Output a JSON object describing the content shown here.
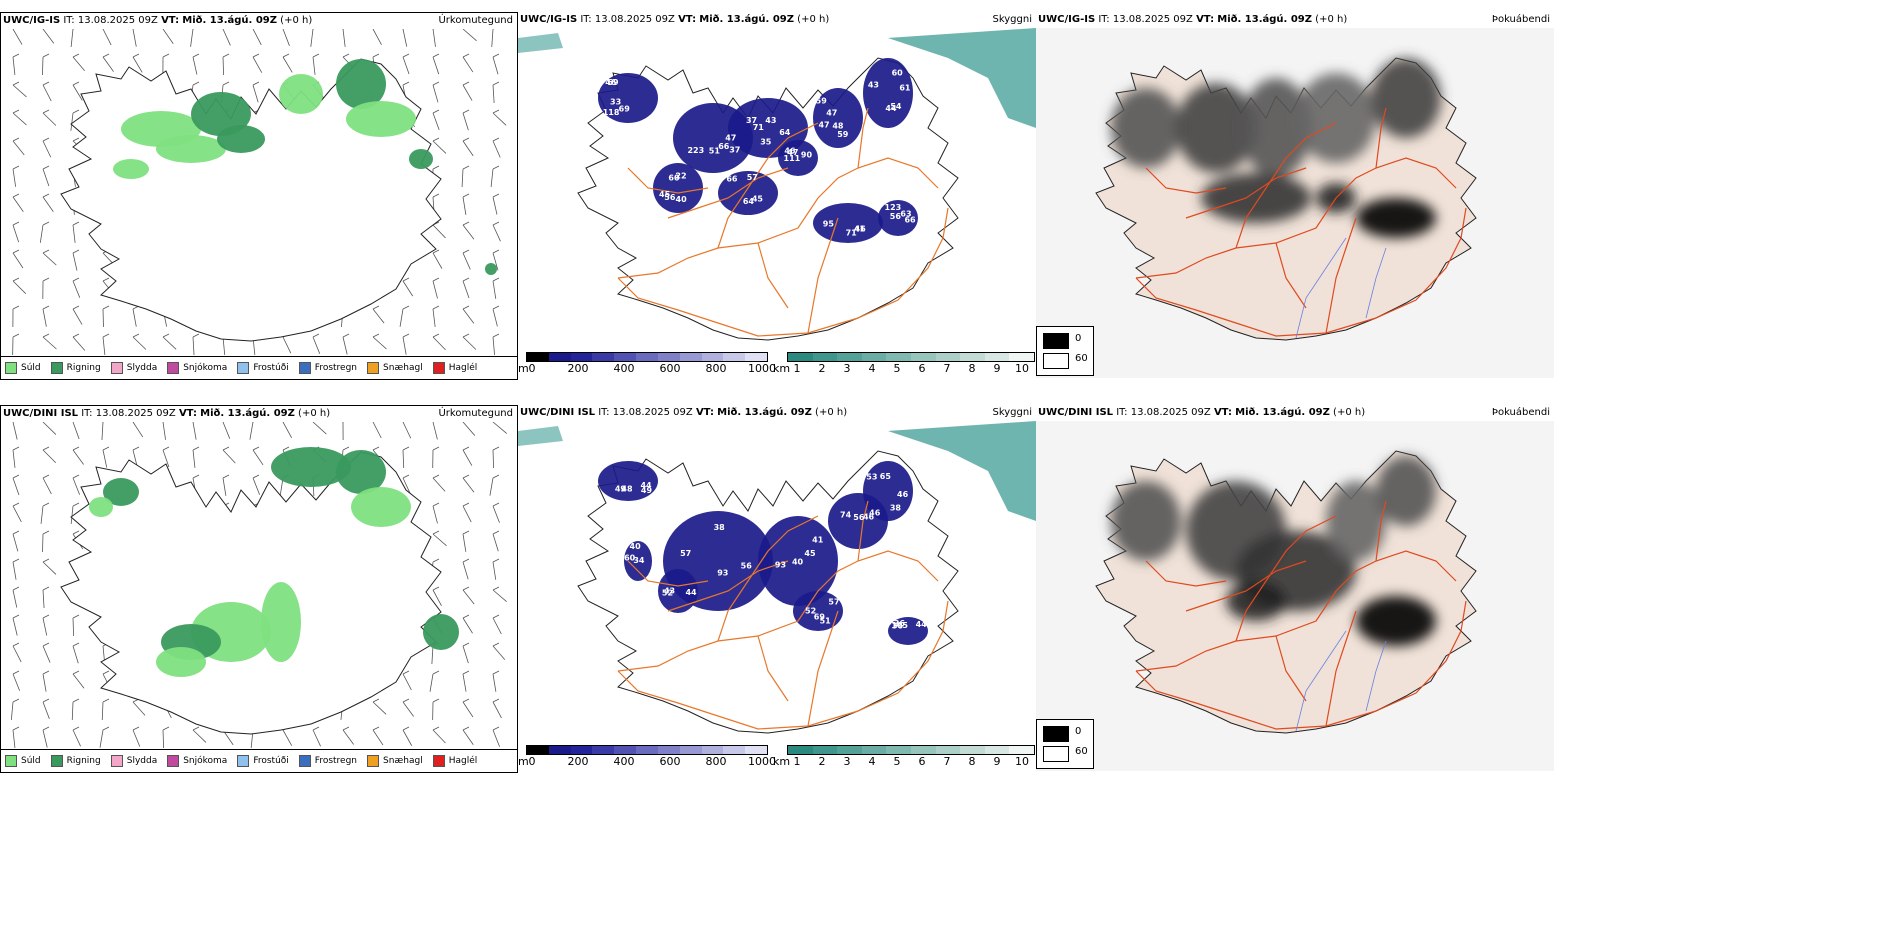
{
  "rows": [
    {
      "model": "UWC/IG-IS",
      "it_label": "IT:",
      "it_value": "13.08.2025 09Z",
      "vt_label": "VT:",
      "vt_value": "Mið. 13.ágú. 09Z",
      "lead": "(+0 h)",
      "panels": {
        "precip_title": "Úrkomutegund",
        "visibility_title": "Skyggni",
        "fog_title": "Þokuábendi"
      },
      "visibility_labels": [
        "69",
        "51",
        "43",
        "59",
        "61",
        "45",
        "64",
        "95",
        "63",
        "46",
        "33",
        "37",
        "35",
        "59",
        "60",
        "40",
        "45",
        "41",
        "66",
        "90",
        "69",
        "47",
        "37",
        "47",
        "44",
        "56",
        "57",
        "71",
        "123",
        "47",
        "46",
        "66",
        "64",
        "48",
        "54",
        "60",
        "66",
        "46",
        "56",
        "111",
        "118",
        "223",
        "71",
        "47",
        "43",
        "22"
      ]
    },
    {
      "model": "UWC/DINI ISL",
      "it_label": "IT:",
      "it_value": "13.08.2025 09Z",
      "vt_label": "VT:",
      "vt_value": "Mið. 13.ágú. 09Z",
      "lead": "(+0 h)",
      "panels": {
        "precip_title": "Úrkomutegund",
        "visibility_title": "Skyggni",
        "fog_title": "Þokuábendi"
      },
      "visibility_labels": [
        "44",
        "56",
        "41",
        "46",
        "65",
        "51",
        "44",
        "43",
        "34",
        "48",
        "38",
        "45",
        "46",
        "38",
        "69",
        "36",
        "52",
        "40",
        "49",
        "57",
        "40",
        "56",
        "46",
        "52",
        "105",
        "44",
        "60",
        "49",
        "93",
        "93",
        "74",
        "53",
        "57",
        "36"
      ]
    }
  ],
  "precip_legend": [
    {
      "label": "Súld",
      "color": "#7fe07f"
    },
    {
      "label": "Rigning",
      "color": "#3a9a5e"
    },
    {
      "label": "Slydda",
      "color": "#f4a6c8"
    },
    {
      "label": "Snjókoma",
      "color": "#c04aa0"
    },
    {
      "label": "Frostúði",
      "color": "#8fc0ee"
    },
    {
      "label": "Frostregn",
      "color": "#3a6fc0"
    },
    {
      "label": "Snæhagl",
      "color": "#f0a020"
    },
    {
      "label": "Haglél",
      "color": "#e02020"
    }
  ],
  "ceiling_bar": {
    "unit": "m",
    "ticks": [
      "0",
      "200",
      "400",
      "600",
      "800",
      "1000"
    ],
    "colors": [
      "#000",
      "#1a1a8a",
      "#23239a",
      "#3a3aa6",
      "#5252b2",
      "#6a6abe",
      "#8080c8",
      "#9898d4",
      "#b0b0de",
      "#c8c8e8",
      "#e0e0f4"
    ]
  },
  "visibility_bar": {
    "unit": "km",
    "ticks": [
      "1",
      "2",
      "3",
      "4",
      "5",
      "6",
      "7",
      "8",
      "9",
      "10"
    ],
    "colors": [
      "#2a8a80",
      "#3f968c",
      "#54a198",
      "#6aada4",
      "#80b9b0",
      "#96c5bc",
      "#accfc8",
      "#c2dbd5",
      "#d8e7e3",
      "#f0f6f4"
    ]
  },
  "fog_legend": {
    "high": "0",
    "low": "60"
  },
  "colors": {
    "roads": "#e8772a",
    "land_fog": "#f0e2d8",
    "sea_fog": "#3f9c94",
    "low_ceiling": "#1a1a8a"
  }
}
